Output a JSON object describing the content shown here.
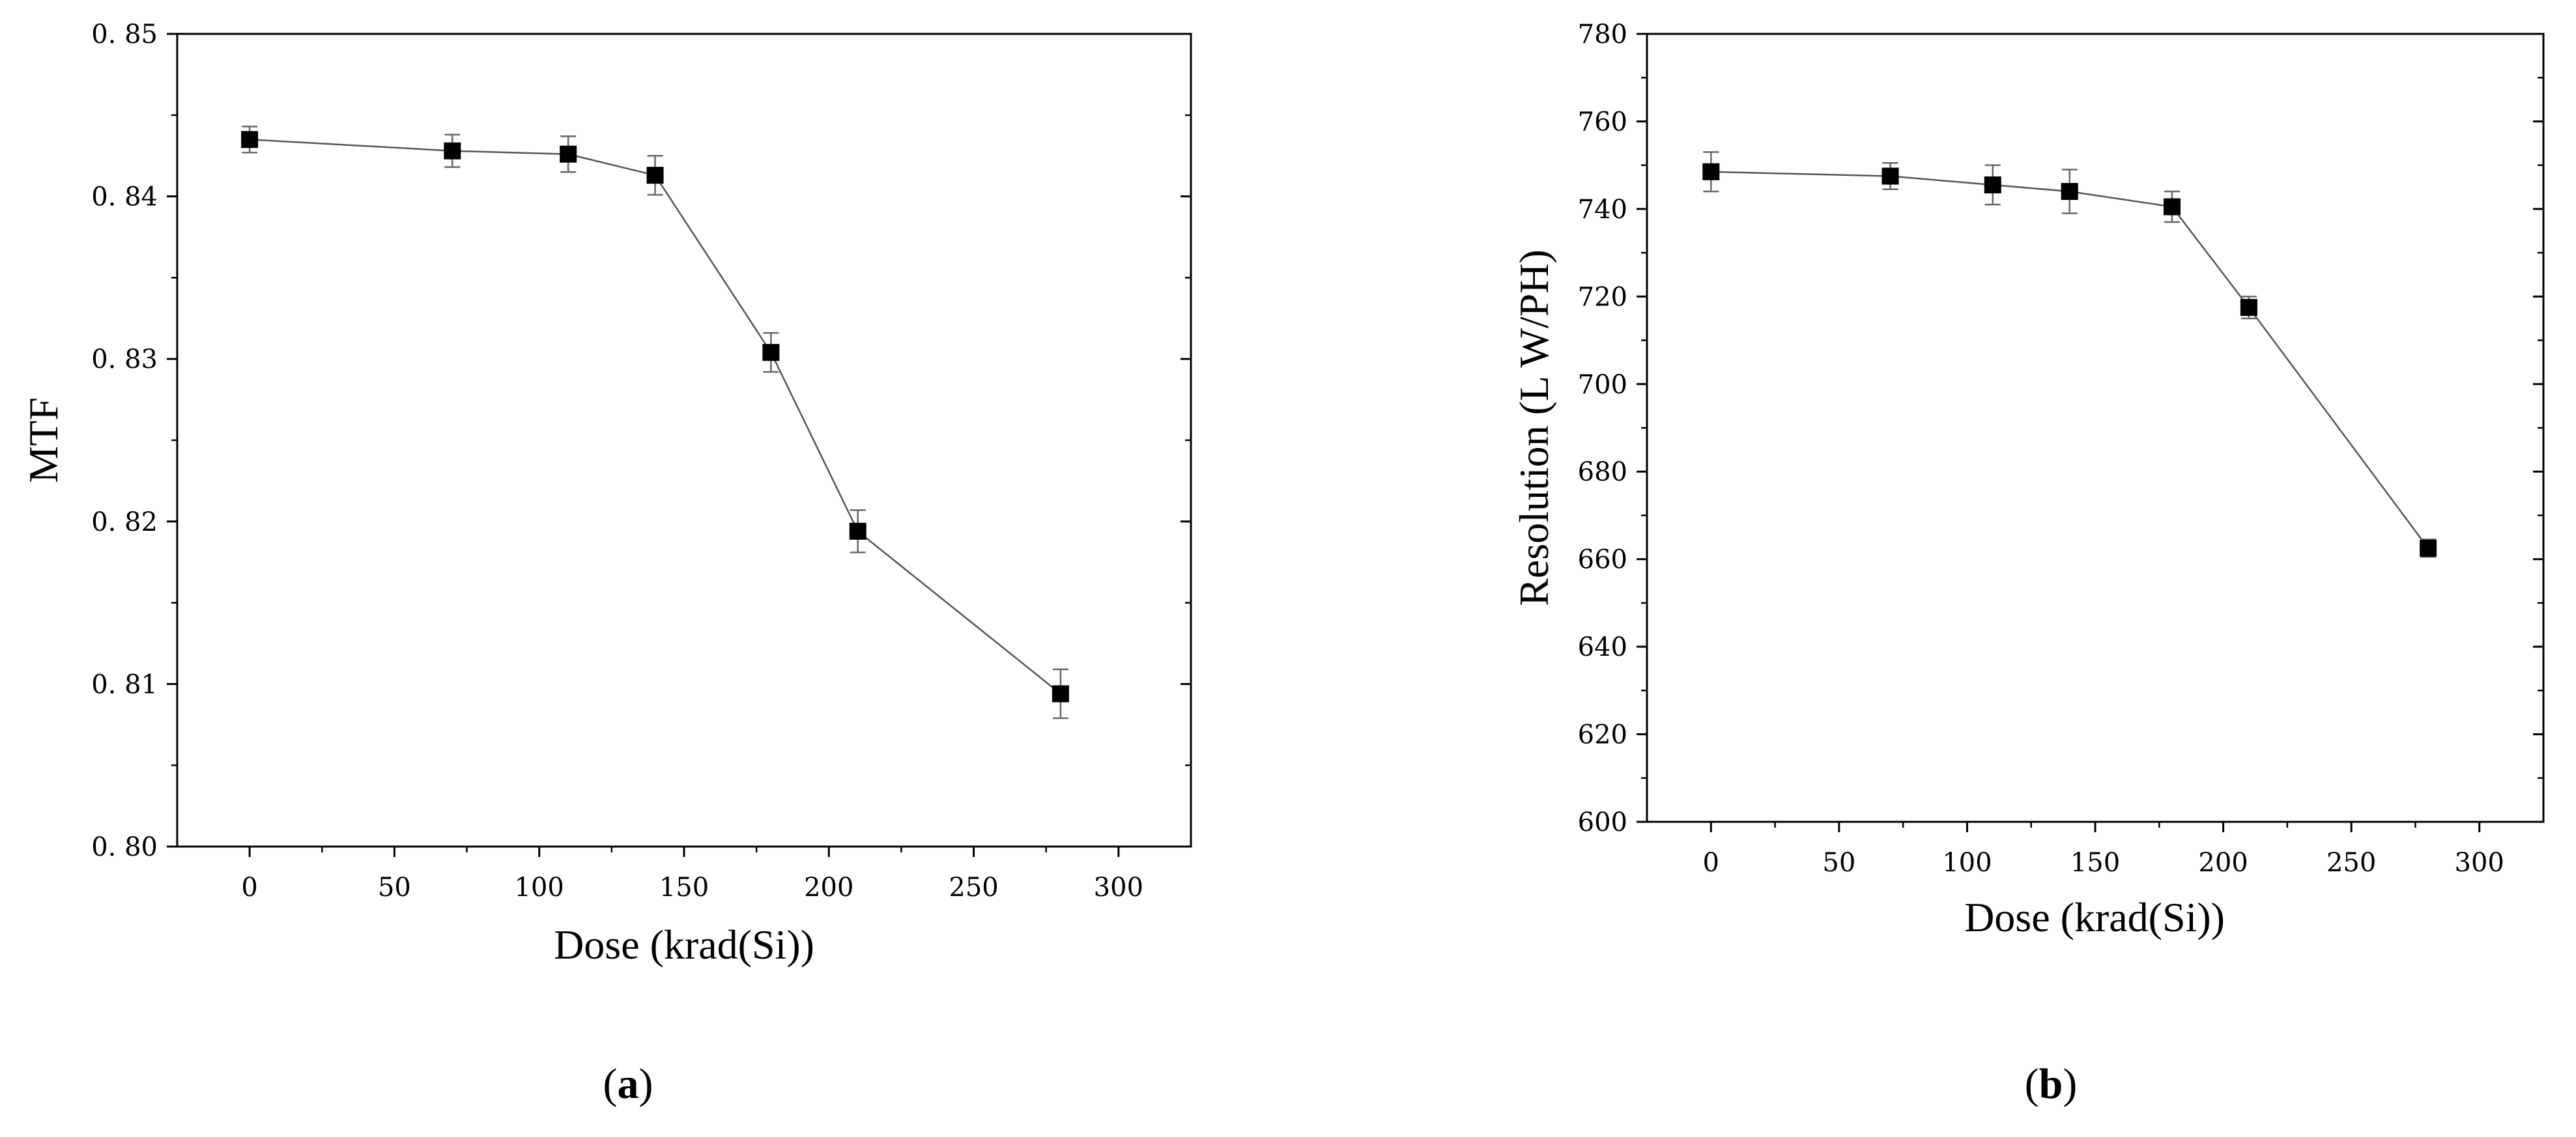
{
  "chart_data": [
    {
      "type": "line",
      "panel_label": "a",
      "xlabel": "Dose (krad(Si))",
      "ylabel": "MTF",
      "xlim": [
        -25,
        325
      ],
      "ylim": [
        0.8,
        0.85
      ],
      "xticks": [
        0,
        50,
        100,
        150,
        200,
        250,
        300
      ],
      "xtick_labels": [
        "0",
        "50",
        "100",
        "150",
        "200",
        "250",
        "300"
      ],
      "yticks": [
        0.8,
        0.81,
        0.82,
        0.83,
        0.84,
        0.85
      ],
      "ytick_labels": [
        "0. 80",
        "0. 81",
        "0. 82",
        "0. 83",
        "0. 84",
        "0. 85"
      ],
      "grid": false,
      "marker": "square",
      "color": "#000000",
      "x": [
        0,
        70,
        110,
        140,
        180,
        210,
        280
      ],
      "y": [
        0.8435,
        0.8428,
        0.8426,
        0.8413,
        0.8304,
        0.8194,
        0.8094
      ],
      "error": [
        0.0008,
        0.001,
        0.0011,
        0.0012,
        0.0012,
        0.0013,
        0.0015
      ]
    },
    {
      "type": "line",
      "panel_label": "b",
      "xlabel": "Dose (krad(Si))",
      "ylabel": "Resolution (L W/PH)",
      "xlim": [
        -25,
        325
      ],
      "ylim": [
        600,
        780
      ],
      "xticks": [
        0,
        50,
        100,
        150,
        200,
        250,
        300
      ],
      "xtick_labels": [
        "0",
        "50",
        "100",
        "150",
        "200",
        "250",
        "300"
      ],
      "yticks": [
        600,
        620,
        640,
        660,
        680,
        700,
        720,
        740,
        760,
        780
      ],
      "ytick_labels": [
        "600",
        "620",
        "640",
        "660",
        "680",
        "700",
        "720",
        "740",
        "760",
        "780"
      ],
      "grid": false,
      "marker": "square",
      "color": "#000000",
      "x": [
        0,
        70,
        110,
        140,
        180,
        210,
        280
      ],
      "y": [
        748.5,
        747.5,
        745.5,
        744.0,
        740.5,
        717.5,
        662.5
      ],
      "error": [
        4.5,
        3.0,
        4.5,
        5.0,
        3.5,
        2.5,
        2.0
      ]
    }
  ]
}
